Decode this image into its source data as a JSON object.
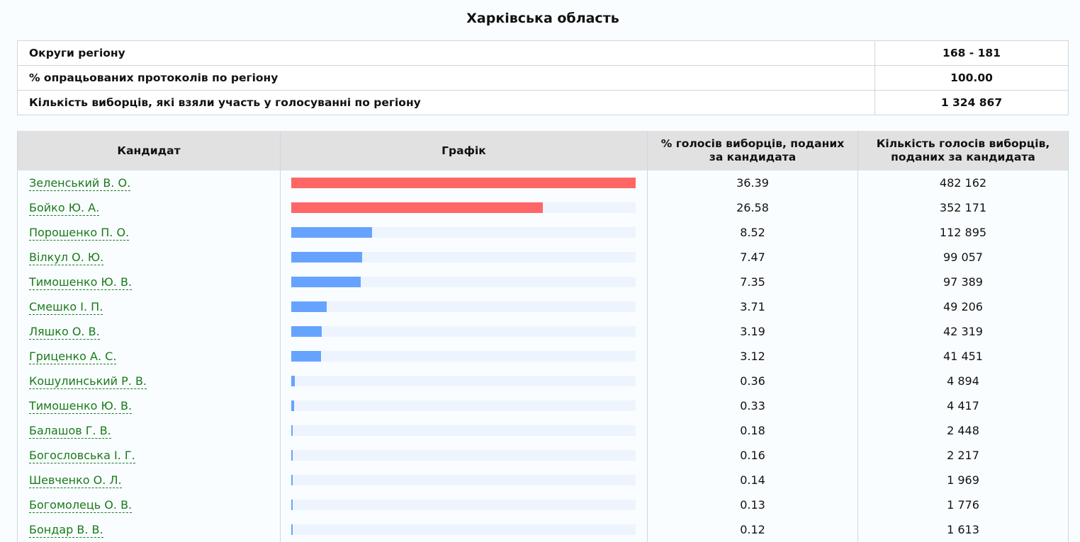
{
  "page_title": "Харківська область",
  "summary": [
    {
      "label": "Округи регіону",
      "value": "168 - 181"
    },
    {
      "label": "% опрацьованих протоколів по регіону",
      "value": "100.00"
    },
    {
      "label": "Кількість виборців, які взяли участь у голосуванні по регіону",
      "value": "1 324 867"
    }
  ],
  "table": {
    "headers": {
      "candidate": "Кандидат",
      "chart": "Графік",
      "percent": "% голосів виборців, поданих за кандидата",
      "votes": "Кількість голосів виборців, поданих за кандидата"
    }
  },
  "colors": {
    "top_bar": "#ff6666",
    "other_bar": "#66a3ff",
    "track": "#eef4fd",
    "link": "#1a7a1a"
  },
  "chart_data": {
    "type": "bar",
    "orientation": "horizontal",
    "highlight_top": 2,
    "categories": [
      "Зеленський В. О.",
      "Бойко Ю. А.",
      "Порошенко П. О.",
      "Вілкул О. Ю.",
      "Тимошенко Ю. В.",
      "Смешко І. П.",
      "Ляшко О. В.",
      "Гриценко А. С.",
      "Кошулинський Р. В.",
      "Тимошенко Ю. В.",
      "Балашов Г. В.",
      "Богословська І. Г.",
      "Шевченко О. Л.",
      "Богомолець О. В.",
      "Бондар В. В."
    ],
    "values": [
      36.39,
      26.58,
      8.52,
      7.47,
      7.35,
      3.71,
      3.19,
      3.12,
      0.36,
      0.33,
      0.18,
      0.16,
      0.14,
      0.13,
      0.12
    ],
    "percent_labels": [
      "36.39",
      "26.58",
      "8.52",
      "7.47",
      "7.35",
      "3.71",
      "3.19",
      "3.12",
      "0.36",
      "0.33",
      "0.18",
      "0.16",
      "0.14",
      "0.13",
      "0.12"
    ],
    "votes": [
      "482 162",
      "352 171",
      "112 895",
      "99 057",
      "97 389",
      "49 206",
      "42 319",
      "41 451",
      "4 894",
      "4 417",
      "2 448",
      "2 217",
      "1 969",
      "1 776",
      "1 613"
    ]
  }
}
